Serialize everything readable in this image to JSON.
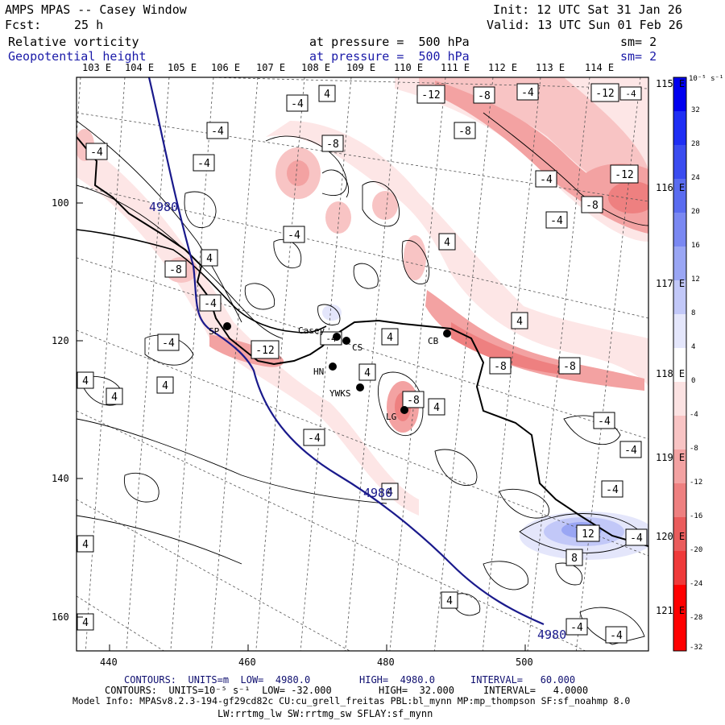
{
  "header": {
    "title": "AMPS MPAS -- Casey Window",
    "init": "Init: 12 UTC Sat 31 Jan 26",
    "fcst_label": "Fcst:",
    "fcst_value": "25 h",
    "valid": "Valid: 13 UTC Sun 01 Feb 26",
    "field1": "Relative vorticity",
    "field1_pressure": "at pressure =  500 hPa",
    "field1_sm": "sm= 2",
    "field2": "Geopotential height",
    "field2_pressure": "at pressure =  500 hPa",
    "field2_sm": "sm= 2"
  },
  "lon_top": [
    "103 E",
    "104 E",
    "105 E",
    "106 E",
    "107 E",
    "108 E",
    "109 E",
    "110 E",
    "111 E",
    "112 E",
    "113 E",
    "114 E"
  ],
  "lon_right": [
    "115 E",
    "116 E",
    "117 E",
    "118 E",
    "119 E",
    "120 E",
    "121 E"
  ],
  "x_ticks": [
    "440",
    "460",
    "480",
    "500"
  ],
  "y_ticks": [
    "100",
    "120",
    "140",
    "160"
  ],
  "stations": [
    {
      "label": "SP"
    },
    {
      "label": "Casey"
    },
    {
      "label": "CS"
    },
    {
      "label": "HN"
    },
    {
      "label": "YWKS"
    },
    {
      "label": "LG"
    },
    {
      "label": "CB"
    }
  ],
  "height_labels": [
    "4980",
    "4980",
    "4980"
  ],
  "contour_labels": [
    "-4",
    "4",
    "-12",
    "-8",
    "-4",
    "-12",
    "-4",
    "-4",
    "-4",
    "-8",
    "-8",
    "-4",
    "-12",
    "-4",
    "-8",
    "-4",
    "4",
    "-8",
    "4",
    "-4",
    "4",
    "-4",
    "-12",
    "4",
    "-8",
    "-8",
    "4",
    "4",
    "4",
    "4",
    "4",
    "-8",
    "4",
    "-4",
    "-4",
    "-4",
    "-4",
    "12",
    "-4",
    "8",
    "4",
    "4",
    "-4",
    "4",
    "-4",
    "-4",
    "-4"
  ],
  "colorbar": {
    "unit": "10⁻⁵ s⁻¹",
    "levels": [
      "32",
      "28",
      "24",
      "20",
      "16",
      "12",
      "8",
      "4",
      "0",
      "-4",
      "-8",
      "-12",
      "-16",
      "-20",
      "-24",
      "-28",
      "-32"
    ],
    "colors": [
      "#0000f0",
      "#1e2ef4",
      "#3a4cf0",
      "#5a6cf0",
      "#7a88f2",
      "#9aa6f4",
      "#c2c8f8",
      "#e4e6fb",
      "#ffffff",
      "#ffffff",
      "#fbe2e2",
      "#f8c4c4",
      "#f3a2a2",
      "#ee8080",
      "#ea5c5c",
      "#ef3a3a",
      "#ff0000"
    ]
  },
  "footer": {
    "line1_a": "CONTOURS:  UNITS=m  LOW=  4980.0",
    "line1_b": "HIGH=  4980.0",
    "line1_c": "INTERVAL=   60.000",
    "line2_a": "CONTOURS:  UNITS=10⁻⁵ s⁻¹  LOW= -32.000",
    "line2_b": "HIGH=  32.000",
    "line2_c": "INTERVAL=   4.0000",
    "line3": "Model Info: MPASv8.2.3-194-gf29cd82c CU:cu_grell_freitas PBL:bl_mynn MP:mp_thompson SF:sf_noahmp 8.0",
    "line4": "LW:rrtmg_lw SW:rrtmg_sw SFLAY:sf_mynn"
  }
}
